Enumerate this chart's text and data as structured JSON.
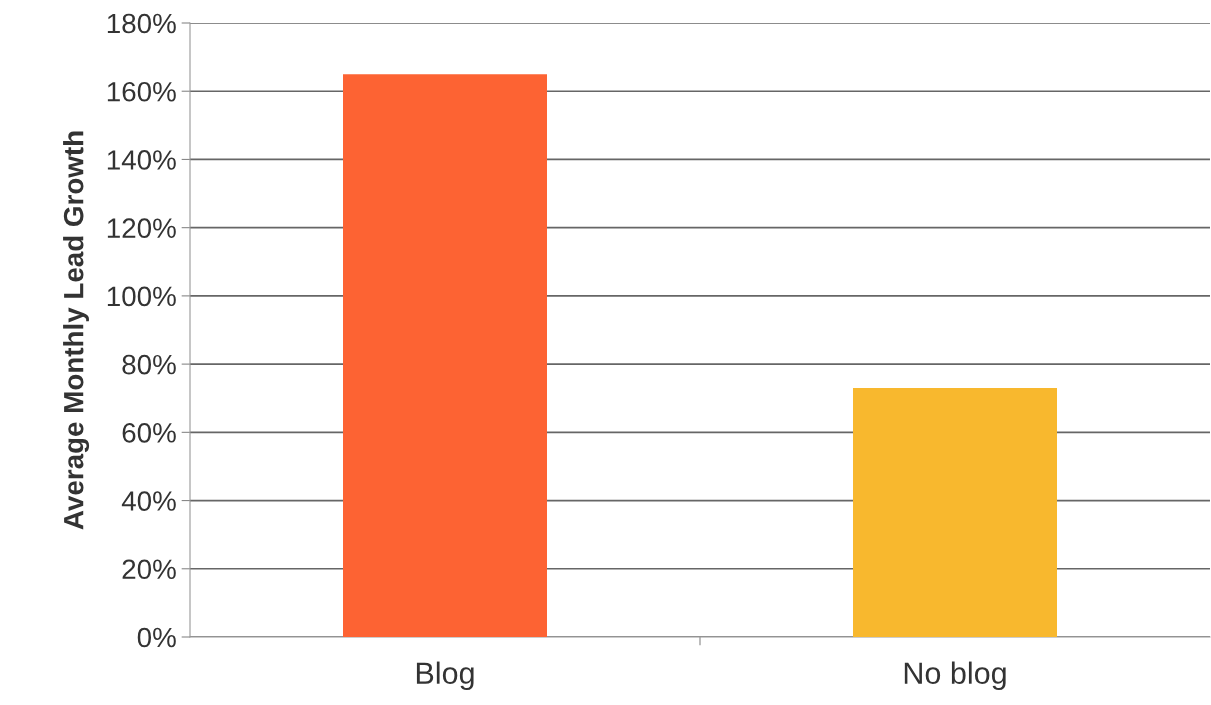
{
  "chart_data": {
    "type": "bar",
    "ylabel": "Average Monthly Lead Growth",
    "categories": [
      "Blog",
      "No blog"
    ],
    "values": [
      165,
      73
    ],
    "colors": [
      "#fd6333",
      "#f8b82e"
    ],
    "ylim": [
      0,
      180
    ],
    "yticks": [
      {
        "value": 0,
        "label": "0%"
      },
      {
        "value": 20,
        "label": "20%"
      },
      {
        "value": 40,
        "label": "40%"
      },
      {
        "value": 60,
        "label": "60%"
      },
      {
        "value": 80,
        "label": "80%"
      },
      {
        "value": 100,
        "label": "100%"
      },
      {
        "value": 120,
        "label": "120%"
      },
      {
        "value": 140,
        "label": "140%"
      },
      {
        "value": 160,
        "label": "160%"
      },
      {
        "value": 180,
        "label": "180%"
      }
    ],
    "grid": "y",
    "legend": false
  }
}
